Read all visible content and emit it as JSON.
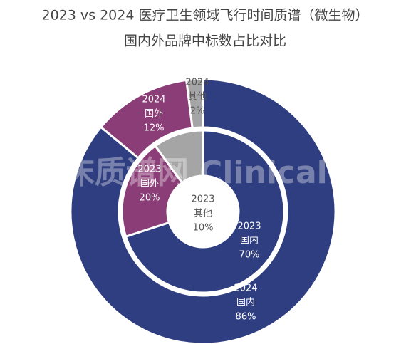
{
  "chart_data": {
    "type": "donut",
    "title": "2023 vs 2024 医疗卫生领域飞行时间质谱（微生物）",
    "subtitle": "国内外品牌中标数占比对比",
    "watermark": "临床质谱网 ClinicalMS",
    "categories": [
      "国内",
      "国外",
      "其他"
    ],
    "colors": [
      "#2f3e80",
      "#8a3d76",
      "#a5a5a5"
    ],
    "series": [
      {
        "name": "2023",
        "values": [
          70,
          20,
          10
        ],
        "value_labels": [
          "70%",
          "20%",
          "10%"
        ]
      },
      {
        "name": "2024",
        "values": [
          86,
          12,
          2
        ],
        "value_labels": [
          "86%",
          "12%",
          "2%"
        ]
      }
    ]
  }
}
